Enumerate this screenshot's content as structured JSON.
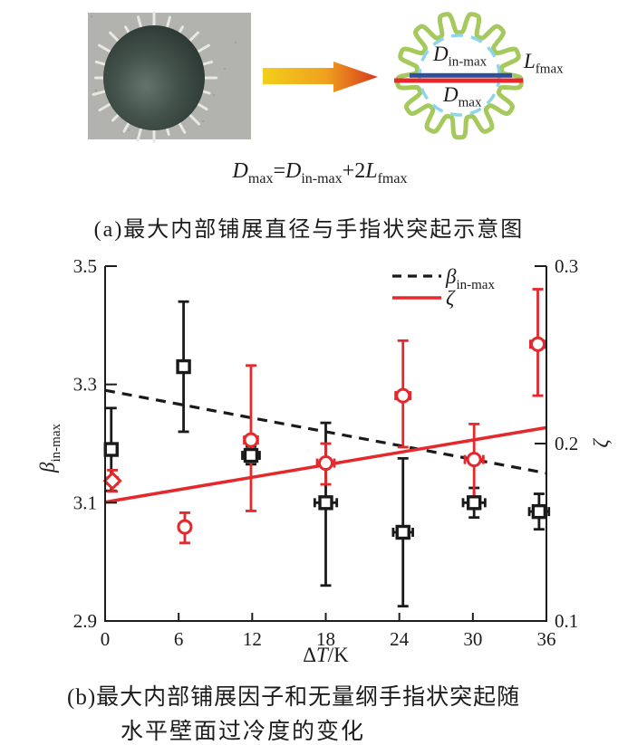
{
  "captions": {
    "a": "(a)最大内部铺展直径与手指状突起示意图",
    "b1": "(b)最大内部铺展因子和无量纲手指状突起随",
    "b2": "水平壁面过冷度的变化"
  },
  "equation": {
    "lhs_base": "D",
    "lhs_sub": "max",
    "equals": "=",
    "rhs1_base": "D",
    "rhs1_sub": "in-max",
    "plus2": "+2",
    "rhs2_base": "L",
    "rhs2_sub": "fmax"
  },
  "schematic": {
    "labels": {
      "d_base": "D",
      "in_max_sub": "in-max",
      "max_sub": "max",
      "l_base": "L",
      "fmax_sub": "fmax"
    },
    "colors": {
      "gear_green": "#a6c95e",
      "inner_dashed_blue": "#8ed5ec",
      "d_in_max_line_blue": "#2c4f9e",
      "d_max_line_red": "#e5282b"
    },
    "arrow": {
      "c1": "#f2cf1b",
      "c2": "#f0a01e",
      "c3": "#d8381d"
    },
    "photo": {
      "bg": "#b2b2ae",
      "speckle": "#9d9d99",
      "spike": "#e8e8e2",
      "drop_center": "#64746c",
      "drop_mid": "#44524c",
      "drop_edge": "#28332f"
    }
  },
  "chart_data": {
    "type": "scatter",
    "title": "",
    "xlabel": "ΔT/K",
    "ylabel_left": {
      "base": "β",
      "sub": "in-max"
    },
    "ylabel_right": "ζ",
    "xlim": [
      0,
      36
    ],
    "ylim_left": [
      2.9,
      3.5
    ],
    "ylim_right": [
      0.1,
      0.3
    ],
    "xticks": [
      "0",
      "6",
      "12",
      "18",
      "24",
      "30",
      "36"
    ],
    "yticks_left": [
      "2.9",
      "3.1",
      "3.3",
      "3.5"
    ],
    "yticks_right": [
      "0.1",
      "0.2",
      "0.3"
    ],
    "grid": false,
    "legend_position": "top-right-inside",
    "series": [
      {
        "name": "beta-in-max",
        "label_base": "β",
        "label_sub": "in-max",
        "axis": "left",
        "marker": "square",
        "color": "#1a1a1a",
        "trend": {
          "style": "dashed",
          "x": [
            0,
            36
          ],
          "y": [
            3.29,
            3.15
          ]
        },
        "points": [
          {
            "x": 0.5,
            "y": 3.19,
            "err_up": 0.07,
            "err_down": 0.07,
            "xerr": 0.3
          },
          {
            "x": 6.4,
            "y": 3.33,
            "err_up": 0.11,
            "err_down": 0.11,
            "xerr": 0.3
          },
          {
            "x": 11.9,
            "y": 3.18,
            "err_up": 0.015,
            "err_down": 0.015,
            "xerr": 0.7
          },
          {
            "x": 18,
            "y": 3.1,
            "err_up": 0.135,
            "err_down": 0.14,
            "xerr": 0.9
          },
          {
            "x": 24.3,
            "y": 3.05,
            "err_up": 0.125,
            "err_down": 0.125,
            "xerr": 0.8
          },
          {
            "x": 30.1,
            "y": 3.1,
            "err_up": 0.025,
            "err_down": 0.025,
            "xerr": 0.9
          },
          {
            "x": 35.4,
            "y": 3.085,
            "err_up": 0.03,
            "err_down": 0.03,
            "xerr": 0.8
          }
        ]
      },
      {
        "name": "zeta",
        "label_base": "ζ",
        "label_sub": "",
        "axis": "right",
        "marker": "circle",
        "color": "#e5282b",
        "trend": {
          "style": "solid",
          "x": [
            0,
            36
          ],
          "y": [
            0.167,
            0.209
          ]
        },
        "points": [
          {
            "x": 0.6,
            "y": 0.179,
            "err_up": 0.006,
            "err_down": 0.006,
            "xerr": 0.4,
            "marker": "diamond"
          },
          {
            "x": 6.5,
            "y": 0.153,
            "err_up": 0.008,
            "err_down": 0.009,
            "xerr": 0.45
          },
          {
            "x": 11.9,
            "y": 0.202,
            "err_up": 0.042,
            "err_down": 0.04,
            "xerr": 0.55
          },
          {
            "x": 18,
            "y": 0.189,
            "err_up": 0.011,
            "err_down": 0.012,
            "xerr": 0.7
          },
          {
            "x": 24.3,
            "y": 0.227,
            "err_up": 0.031,
            "err_down": 0.029,
            "xerr": 0.6
          },
          {
            "x": 30.1,
            "y": 0.191,
            "err_up": 0.02,
            "err_down": 0.021,
            "xerr": 0.75
          },
          {
            "x": 35.3,
            "y": 0.256,
            "err_up": 0.031,
            "err_down": 0.029,
            "xerr": 0.6
          }
        ]
      }
    ]
  }
}
